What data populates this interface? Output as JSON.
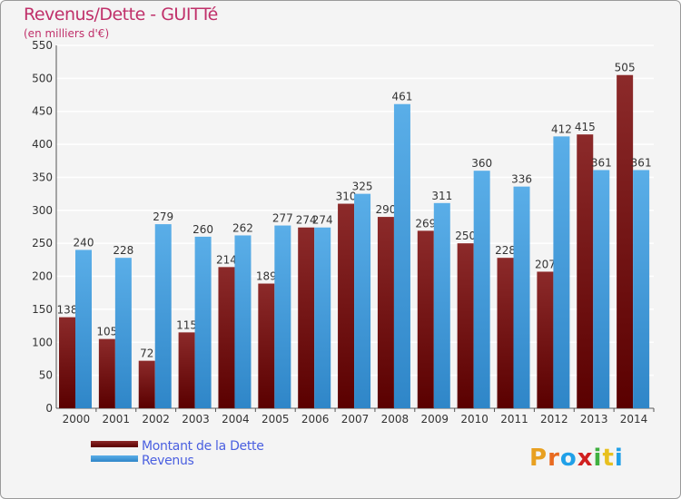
{
  "title": "Revenus/Dette - GUITTé",
  "subtitle": "(en milliers d'€)",
  "colors": {
    "dette_top": "#8c2a2a",
    "dette_bottom": "#5a0000",
    "revenus_top": "#5aaee8",
    "revenus_bottom": "#2f86c8"
  },
  "chart_data": {
    "type": "bar",
    "categories": [
      "2000",
      "2001",
      "2002",
      "2003",
      "2004",
      "2005",
      "2006",
      "2007",
      "2008",
      "2009",
      "2010",
      "2011",
      "2012",
      "2013",
      "2014"
    ],
    "series": [
      {
        "name": "Montant de la Dette",
        "values": [
          138,
          105,
          72,
          115,
          214,
          189,
          274,
          310,
          290,
          269,
          250,
          228,
          207,
          415,
          505
        ]
      },
      {
        "name": "Revenus",
        "values": [
          240,
          228,
          279,
          260,
          262,
          277,
          274,
          325,
          461,
          311,
          360,
          336,
          412,
          361,
          361
        ]
      }
    ],
    "ylim": [
      0,
      550
    ],
    "yticks": [
      0,
      50,
      100,
      150,
      200,
      250,
      300,
      350,
      400,
      450,
      500,
      550
    ],
    "grid": true,
    "legend_position": "bottom-left"
  },
  "legend": {
    "dette": "Montant de la Dette",
    "revenus": "Revenus"
  },
  "logo": {
    "text": "Proxiti",
    "colors": [
      "#e8a020",
      "#e86a20",
      "#20a0e8",
      "#d02020",
      "#40b040",
      "#e8c020",
      "#20a0e8"
    ]
  }
}
